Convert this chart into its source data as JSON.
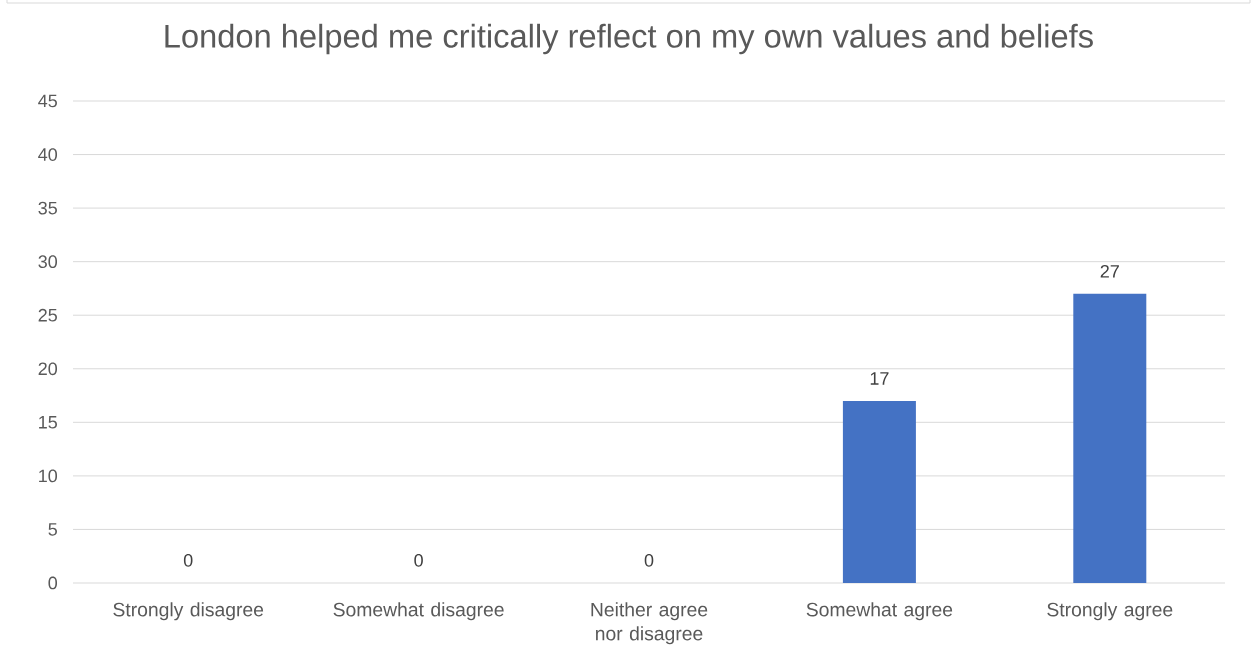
{
  "chart_data": {
    "type": "bar",
    "title": "London helped me critically reflect on my own values and beliefs",
    "categories": [
      "Strongly disagree",
      "Somewhat disagree",
      "Neither agree nor disagree",
      "Somewhat agree",
      "Strongly agree"
    ],
    "values": [
      0,
      0,
      0,
      17,
      27
    ],
    "color": "#4472c4",
    "ylim": [
      0,
      45
    ],
    "yticks": [
      0,
      5,
      10,
      15,
      20,
      25,
      30,
      35,
      40,
      45
    ],
    "grid": "y",
    "data_labels": true
  }
}
